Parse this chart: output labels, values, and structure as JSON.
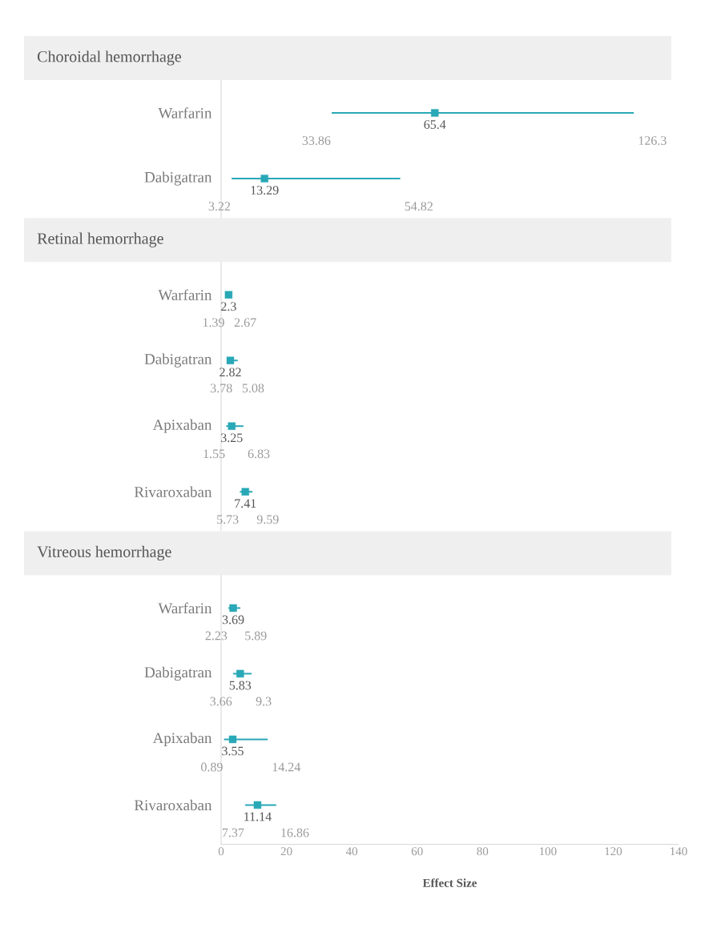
{
  "chart_data": [
    {
      "type": "scatter",
      "orientation": "horizontal",
      "title": "Choroidal hemorrhage",
      "categories": [
        "Warfarin",
        "Dabigatran"
      ],
      "values": [
        65.4,
        13.29
      ],
      "errors": [
        [
          33.86,
          126.3
        ],
        [
          3.22,
          54.82
        ]
      ],
      "color": "#29a8b7",
      "marker": "square",
      "data_labels": true,
      "xlim": [
        0,
        140
      ],
      "tick_labels": "y",
      "annotations": [
        {
          "text": "33.86",
          "x": 33.86,
          "y": "Warfarin"
        },
        {
          "text": "126.3",
          "x": 126.3,
          "y": "Warfarin"
        },
        {
          "text": "3.22",
          "x": 3.22,
          "y": "Dabigatran"
        },
        {
          "text": "54.82",
          "x": 54.82,
          "y": "Dabigatran"
        }
      ]
    },
    {
      "type": "scatter",
      "orientation": "horizontal",
      "title": "Retinal hemorrhage",
      "categories": [
        "Warfarin",
        "Dabigatran",
        "Apixaban",
        "Rivaroxaban"
      ],
      "values": [
        2.3,
        2.82,
        3.25,
        7.41
      ],
      "errors": [
        [
          1.39,
          2.67
        ],
        [
          3.78,
          5.08
        ],
        [
          1.55,
          6.83
        ],
        [
          5.73,
          9.59
        ]
      ],
      "color": "#29a8b7",
      "marker": "square",
      "data_labels": true,
      "xlim": [
        0,
        140
      ],
      "tick_labels": "y",
      "annotations": [
        {
          "text": "1.39",
          "x": 1.39,
          "y": "Warfarin"
        },
        {
          "text": "2.67",
          "x": 2.67,
          "y": "Warfarin"
        },
        {
          "text": "3.78",
          "x": 3.78,
          "y": "Dabigatran"
        },
        {
          "text": "5.08",
          "x": 5.08,
          "y": "Dabigatran"
        },
        {
          "text": "1.55",
          "x": 1.55,
          "y": "Apixaban"
        },
        {
          "text": "6.83",
          "x": 6.83,
          "y": "Apixaban"
        },
        {
          "text": "5.73",
          "x": 5.73,
          "y": "Rivaroxaban"
        },
        {
          "text": "9.59",
          "x": 9.59,
          "y": "Rivaroxaban"
        }
      ]
    },
    {
      "type": "scatter",
      "orientation": "horizontal",
      "title": "Vitreous hemorrhage",
      "xlabel": "Effect Size",
      "categories": [
        "Warfarin",
        "Dabigatran",
        "Apixaban",
        "Rivaroxaban"
      ],
      "values": [
        3.69,
        5.83,
        3.55,
        11.14
      ],
      "errors": [
        [
          2.23,
          5.89
        ],
        [
          3.66,
          9.3
        ],
        [
          0.89,
          14.24
        ],
        [
          7.37,
          16.86
        ]
      ],
      "color": "#29a8b7",
      "marker": "square",
      "data_labels": true,
      "xlim": [
        0,
        140
      ],
      "xticks": [
        0,
        20,
        40,
        60,
        80,
        100,
        120,
        140
      ],
      "annotations": [
        {
          "text": "2.23",
          "x": 2.23,
          "y": "Warfarin"
        },
        {
          "text": "5.89",
          "x": 5.89,
          "y": "Warfarin"
        },
        {
          "text": "3.66",
          "x": 3.66,
          "y": "Dabigatran"
        },
        {
          "text": "9.3",
          "x": 9.3,
          "y": "Dabigatran"
        },
        {
          "text": "0.89",
          "x": 0.89,
          "y": "Apixaban"
        },
        {
          "text": "14.24",
          "x": 14.24,
          "y": "Apixaban"
        },
        {
          "text": "7.37",
          "x": 7.37,
          "y": "Rivaroxaban"
        },
        {
          "text": "16.86",
          "x": 16.86,
          "y": "Rivaroxaban"
        }
      ]
    }
  ]
}
